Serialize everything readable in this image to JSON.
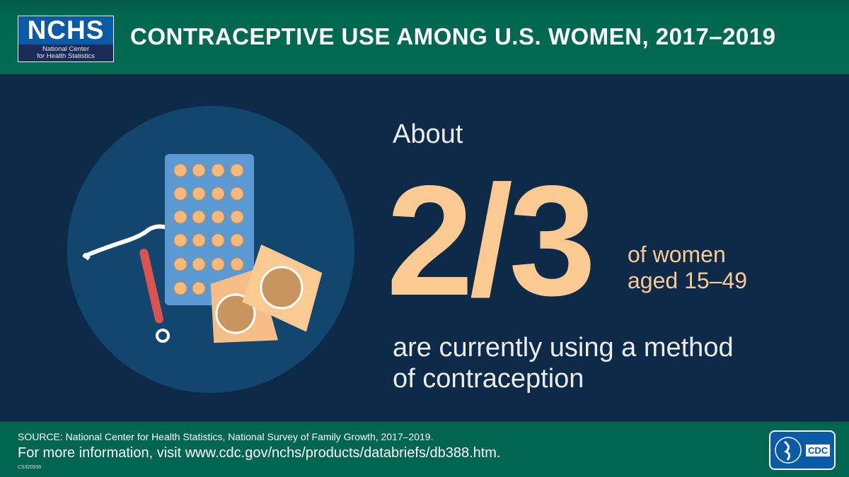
{
  "header": {
    "logo_main": "NCHS",
    "logo_sub1": "National Center",
    "logo_sub2": "for Health Statistics",
    "title": "CONTRACEPTIVE USE AMONG U.S. WOMEN, 2017–2019"
  },
  "main": {
    "about": "About",
    "fraction": "2/3",
    "of_women": "of women",
    "aged": "aged 15–49",
    "line1": "are currently using a method",
    "line2": "of contraception"
  },
  "footer": {
    "source": "SOURCE: National Center for Health Statistics, National Survey of Family Growth, 2017–2019.",
    "more_info": "For more information, visit www.cdc.gov/nchs/products/databriefs/db388.htm.",
    "code": "CS320936",
    "cdc_logo": "CDC"
  },
  "colors": {
    "header_green": "#00664f",
    "background": "#0d2b49",
    "accent_peach": "#fbc992"
  }
}
